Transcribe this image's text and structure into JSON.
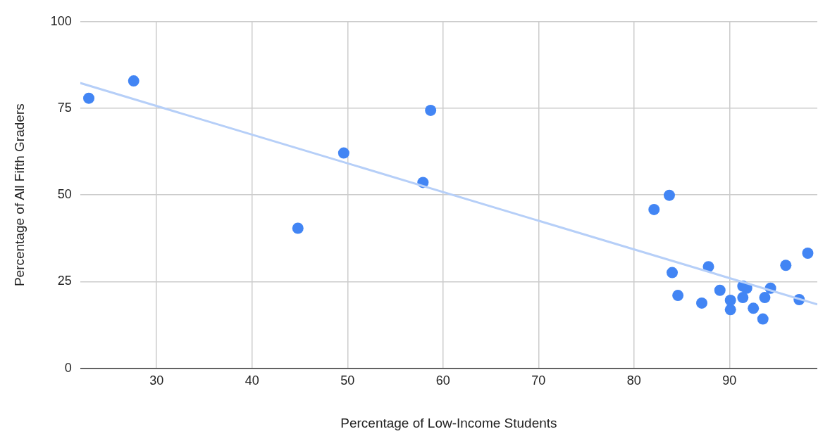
{
  "chart_data": {
    "type": "scatter",
    "xlabel": "Percentage of Low-Income Students",
    "ylabel": "Percentage of All Fifth Graders",
    "xlim": [
      22,
      99.2
    ],
    "xticks": [
      30,
      40,
      50,
      60,
      70,
      80,
      90
    ],
    "ylim": [
      0,
      100
    ],
    "yticks": [
      0,
      25,
      50,
      75,
      100
    ],
    "grid": true,
    "legend": false,
    "marker": "circle",
    "series": [
      {
        "color": "#4285f4",
        "x": [
          22.9,
          27.6,
          44.8,
          49.6,
          57.9,
          58.7,
          82.1,
          83.7,
          84.0,
          84.6,
          87.1,
          87.8,
          89.0,
          90.1,
          90.1,
          91.4,
          91.4,
          91.8,
          92.5,
          93.5,
          93.7,
          94.3,
          95.9,
          97.3,
          98.2
        ],
        "values": [
          77.9,
          82.9,
          40.4,
          62.1,
          53.6,
          74.4,
          45.8,
          49.9,
          27.6,
          21.0,
          18.8,
          29.3,
          22.5,
          19.6,
          16.9,
          23.7,
          20.4,
          23.1,
          17.3,
          14.2,
          20.4,
          23.1,
          29.7,
          19.8,
          33.2
        ]
      },
      {
        "type": "line",
        "color": "#b6cff8",
        "marker": "none",
        "x": [
          22,
          99.2
        ],
        "values": [
          82.3,
          18.4
        ]
      }
    ]
  }
}
